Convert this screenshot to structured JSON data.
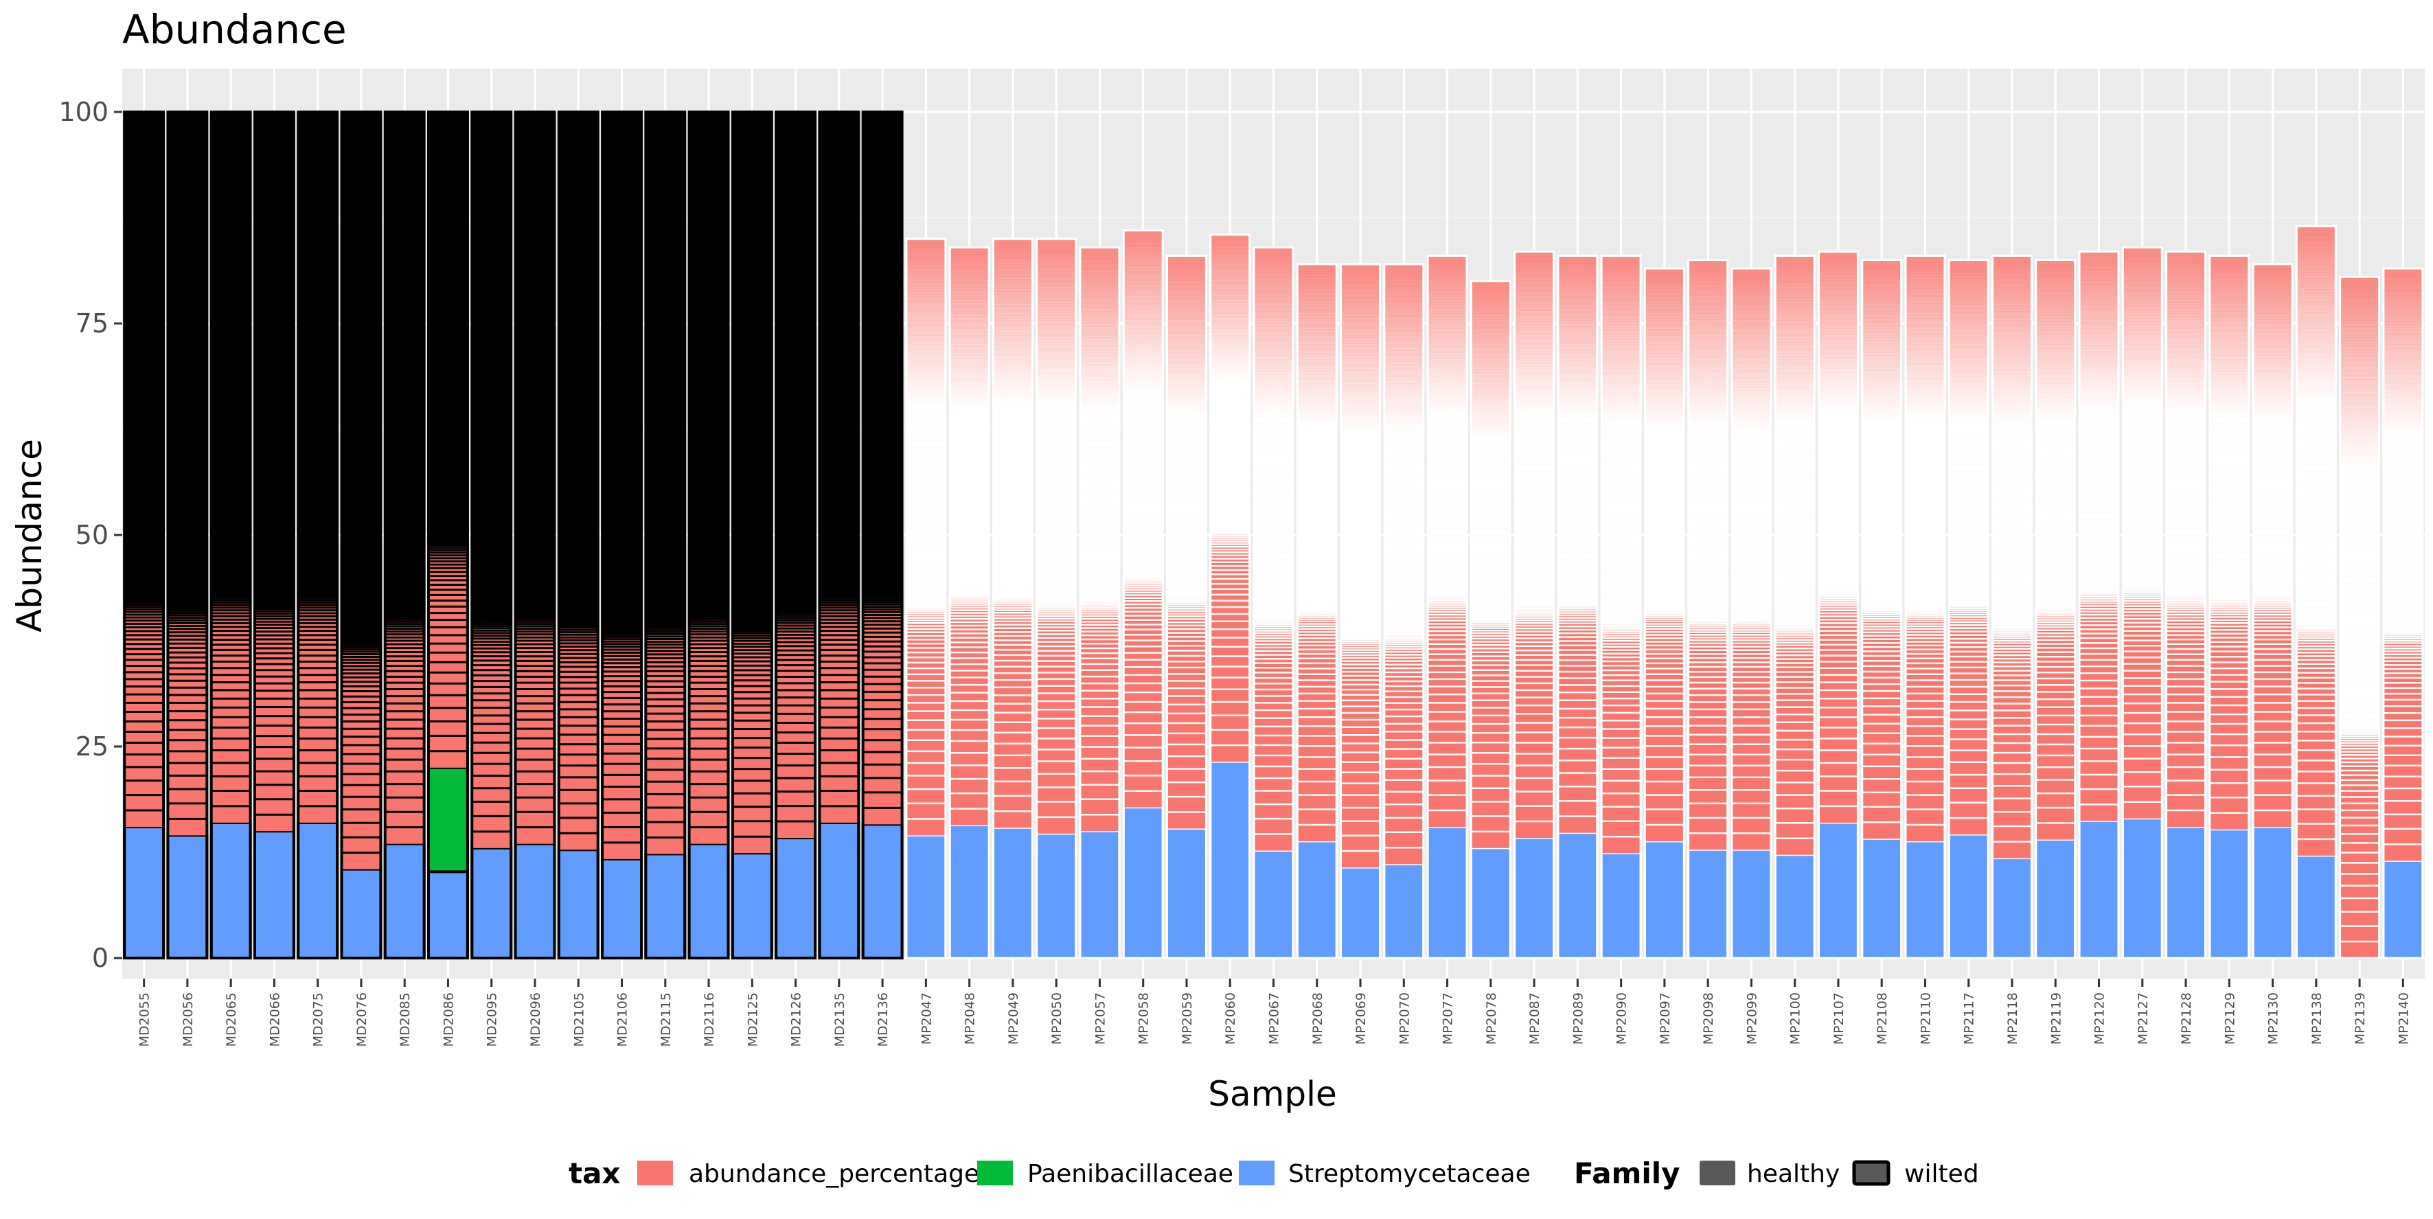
{
  "chart_data": {
    "type": "bar",
    "stacked": true,
    "title": "Abundance",
    "xlabel": "Sample",
    "ylabel": "Abundance",
    "ylim": [
      0,
      100
    ],
    "yticks": [
      0,
      25,
      50,
      75,
      100
    ],
    "grid": true,
    "legend_position": "bottom",
    "categories": [
      "MD2055",
      "MD2056",
      "MD2065",
      "MD2066",
      "MD2075",
      "MD2076",
      "MD2085",
      "MD2086",
      "MD2095",
      "MD2096",
      "MD2105",
      "MD2106",
      "MD2115",
      "MD2116",
      "MD2125",
      "MD2126",
      "MD2135",
      "MD2136",
      "MP2047",
      "MP2048",
      "MP2049",
      "MP2050",
      "MP2057",
      "MP2058",
      "MP2059",
      "MP2060",
      "MP2067",
      "MP2068",
      "MP2069",
      "MP2070",
      "MP2077",
      "MP2078",
      "MP2087",
      "MP2089",
      "MP2090",
      "MP2097",
      "MP2098",
      "MP2099",
      "MP2100",
      "MP2107",
      "MP2108",
      "MP2110",
      "MP2117",
      "MP2118",
      "MP2119",
      "MP2120",
      "MP2127",
      "MP2128",
      "MP2129",
      "MP2130",
      "MP2138",
      "MP2139",
      "MP2140"
    ],
    "family": [
      "wilted",
      "wilted",
      "wilted",
      "wilted",
      "wilted",
      "wilted",
      "wilted",
      "wilted",
      "wilted",
      "wilted",
      "wilted",
      "wilted",
      "wilted",
      "wilted",
      "wilted",
      "wilted",
      "wilted",
      "wilted",
      "healthy",
      "healthy",
      "healthy",
      "healthy",
      "healthy",
      "healthy",
      "healthy",
      "healthy",
      "healthy",
      "healthy",
      "healthy",
      "healthy",
      "healthy",
      "healthy",
      "healthy",
      "healthy",
      "healthy",
      "healthy",
      "healthy",
      "healthy",
      "healthy",
      "healthy",
      "healthy",
      "healthy",
      "healthy",
      "healthy",
      "healthy",
      "healthy",
      "healthy",
      "healthy",
      "healthy",
      "healthy",
      "healthy",
      "healthy",
      "healthy"
    ],
    "series": [
      {
        "name": "Streptomycetaceae",
        "color": "#619CFF",
        "values": [
          15.5,
          14.5,
          16,
          15,
          16,
          10.5,
          13.5,
          10.2,
          13,
          13.5,
          12.8,
          11.7,
          12.3,
          13.5,
          12.4,
          14.2,
          16,
          15.8,
          14.5,
          15.7,
          15.4,
          14.7,
          15,
          17.8,
          15.3,
          23.2,
          12.7,
          13.8,
          10.7,
          11.1,
          15.5,
          13,
          14.2,
          14.8,
          12.4,
          13.8,
          12.8,
          12.8,
          12.2,
          16,
          14.1,
          13.8,
          14.6,
          11.8,
          14,
          16.2,
          16.5,
          15.5,
          15.2,
          15.5,
          12.1,
          0,
          11.5
        ]
      },
      {
        "name": "Paenibacillaceae",
        "color": "#00BA38",
        "values": [
          0,
          0,
          0,
          0,
          0,
          0,
          0,
          12.3,
          0,
          0,
          0,
          0,
          0,
          0,
          0,
          0,
          0,
          0,
          0,
          0,
          0,
          0,
          0,
          0,
          0,
          0,
          0,
          0,
          0,
          0,
          0,
          0,
          0,
          0,
          0,
          0,
          0,
          0,
          0,
          0,
          0,
          0,
          0,
          0,
          0,
          0,
          0,
          0,
          0,
          0,
          0,
          0,
          0
        ]
      },
      {
        "name": "abundance_percentage",
        "color": "#F8766D",
        "values": [
          84.5,
          85.5,
          84,
          85,
          84,
          89.5,
          86.5,
          77.5,
          87,
          86.5,
          87.2,
          88.3,
          87.7,
          86.5,
          87.6,
          85.8,
          84,
          84.2,
          70.5,
          68.3,
          69.6,
          70.3,
          69,
          68.2,
          67.7,
          62.3,
          71.3,
          68.2,
          71.3,
          70.9,
          67.5,
          67,
          69.3,
          68.2,
          70.6,
          67.7,
          69.7,
          68.7,
          70.8,
          67.5,
          68.4,
          69.2,
          67.9,
          71.2,
          68.5,
          67.3,
          67.5,
          68,
          67.8,
          66.5,
          74.4,
          80.5,
          70
        ]
      }
    ]
  },
  "legend": {
    "tax_title": "tax",
    "tax_items": [
      {
        "label": "abundance_percentage",
        "color": "#F8766D"
      },
      {
        "label": "Paenibacillaceae",
        "color": "#00BA38"
      },
      {
        "label": "Streptomycetaceae",
        "color": "#619CFF"
      }
    ],
    "family_title": "Family",
    "family_items": [
      {
        "label": "healthy"
      },
      {
        "label": "wilted"
      }
    ]
  }
}
